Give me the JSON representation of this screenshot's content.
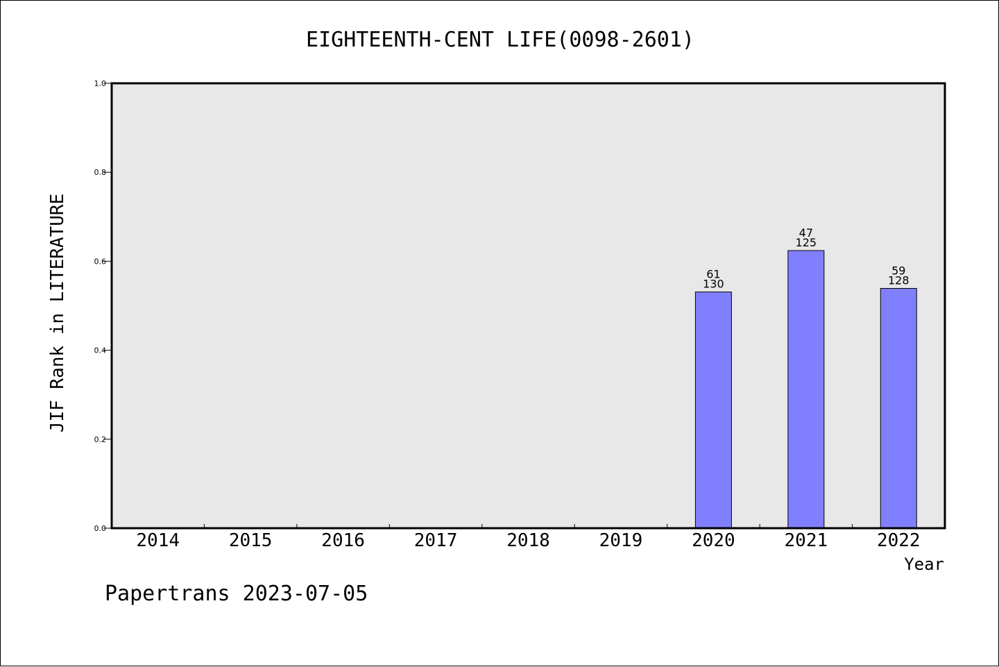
{
  "chart_data": {
    "type": "bar",
    "title": "EIGHTEENTH-CENT LIFE(0098-2601)",
    "xlabel": "Year",
    "ylabel": "JIF Rank in LITERATURE",
    "ylim": [
      0,
      1.0
    ],
    "yticks": [
      "0.0",
      "0.2",
      "0.4",
      "0.6",
      "0.8",
      "1.0"
    ],
    "categories": [
      "2014",
      "2015",
      "2016",
      "2017",
      "2018",
      "2019",
      "2020",
      "2021",
      "2022"
    ],
    "values": [
      null,
      null,
      null,
      null,
      null,
      null,
      0.531,
      0.624,
      0.539
    ],
    "ranks": [
      null,
      null,
      null,
      null,
      null,
      null,
      "61",
      "47",
      "59"
    ],
    "totals": [
      null,
      null,
      null,
      null,
      null,
      null,
      "130",
      "125",
      "128"
    ],
    "grid": false,
    "bar_color": "#8080ff",
    "plot_background": "#e8e8e8"
  },
  "footer": {
    "credit": "Papertrans 2023-07-05"
  }
}
